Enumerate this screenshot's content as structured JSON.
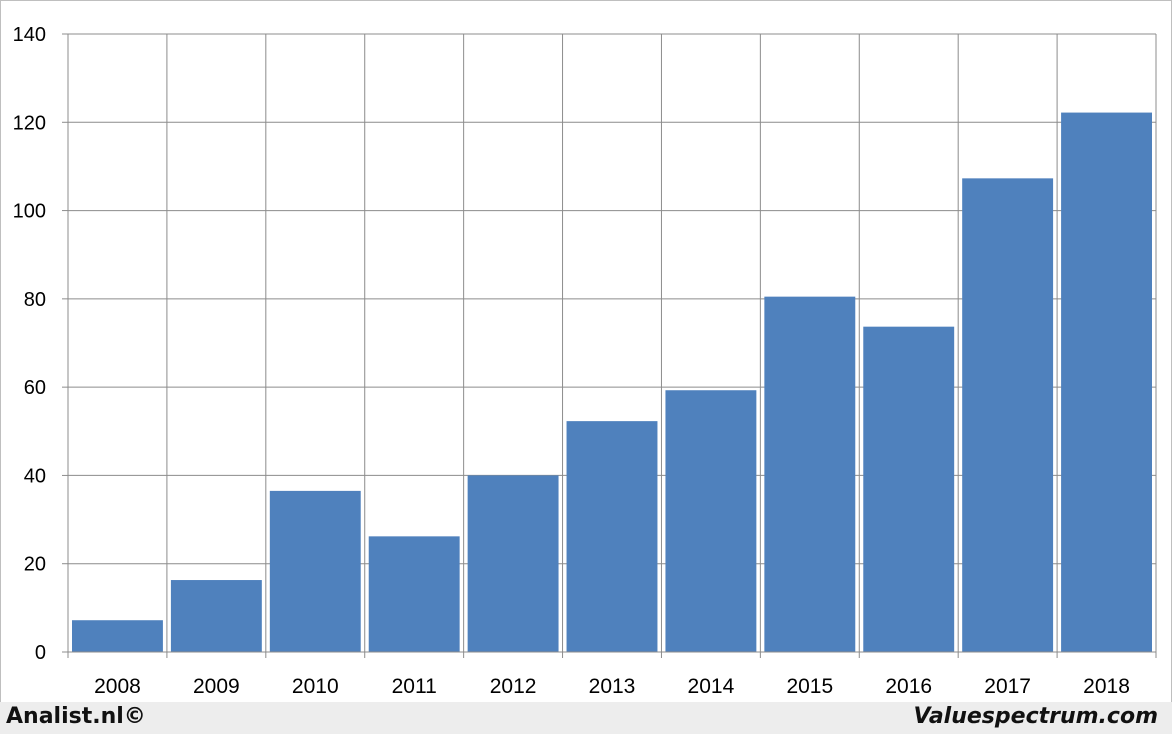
{
  "chart_data": {
    "type": "bar",
    "categories": [
      "2008",
      "2009",
      "2010",
      "2011",
      "2012",
      "2013",
      "2014",
      "2015",
      "2016",
      "2017",
      "2018"
    ],
    "values": [
      7.2,
      16.3,
      36.5,
      26.2,
      40.0,
      52.3,
      59.3,
      80.5,
      73.7,
      107.3,
      122.2
    ],
    "ylim": [
      0,
      140
    ],
    "yticks": [
      0,
      20,
      40,
      60,
      80,
      100,
      120,
      140
    ],
    "grid": true,
    "bar_color": "#4f81bd"
  },
  "footer": {
    "left": "Analist.nl©",
    "right": "Valuespectrum.com"
  }
}
